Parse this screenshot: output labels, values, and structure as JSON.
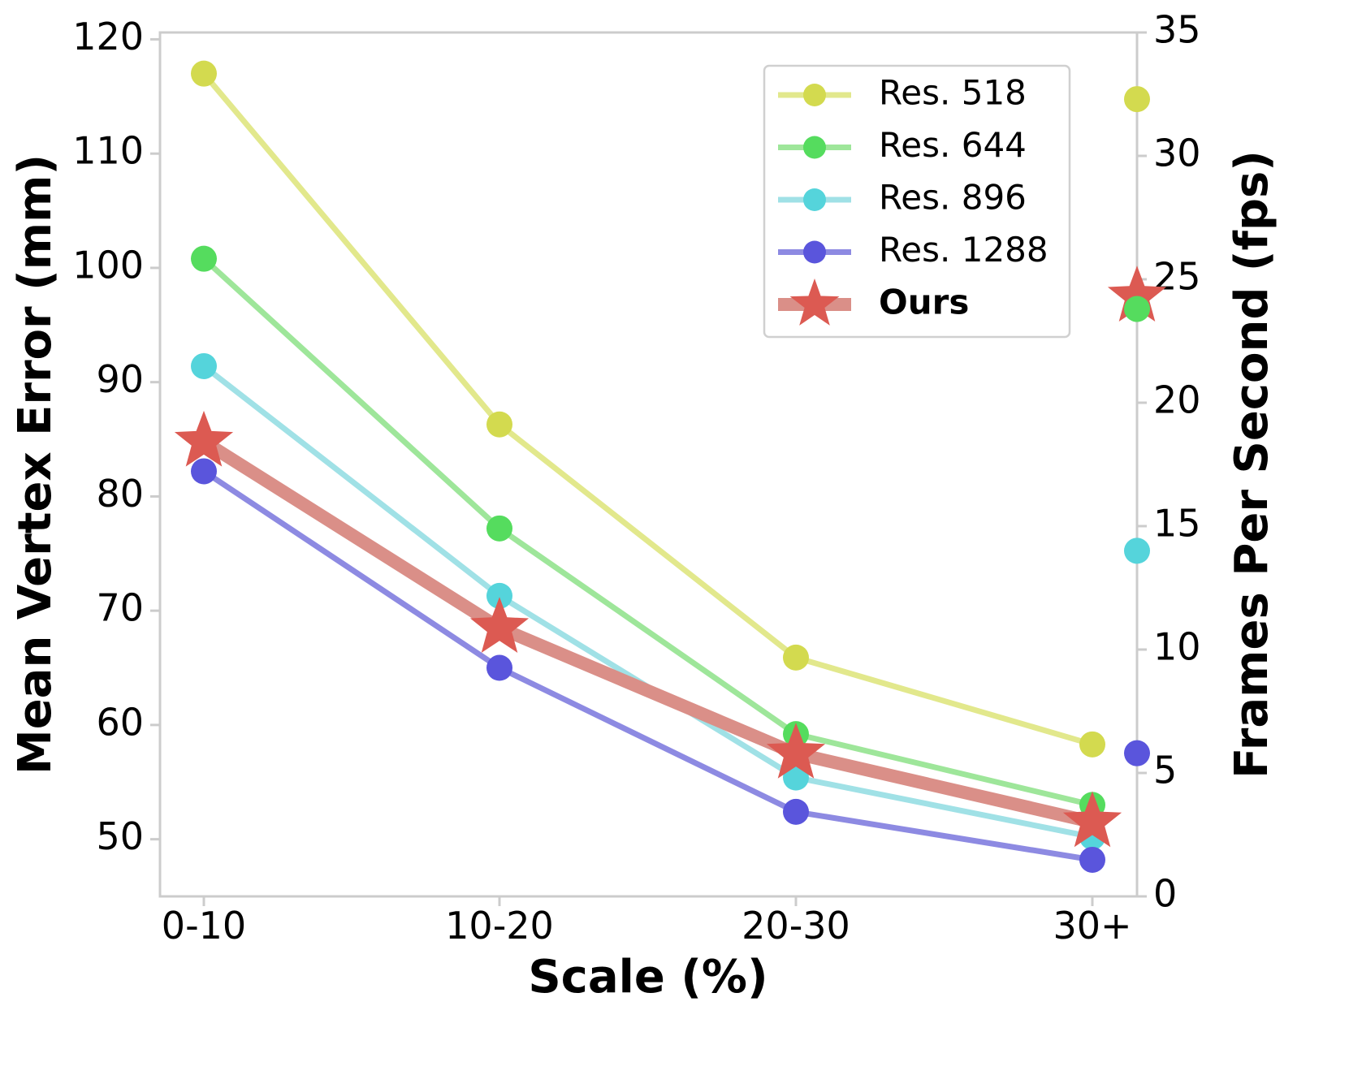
{
  "chart_data": {
    "type": "line",
    "title": "",
    "xlabel": "Scale (%)",
    "ylabel": "Mean Vertex Error (mm)",
    "y2label": "Frames Per Second (fps)",
    "categories": [
      "0-10",
      "10-20",
      "20-30",
      "30+"
    ],
    "ylim": [
      45,
      120.6
    ],
    "y2lim": [
      0,
      35
    ],
    "yticks": [
      50,
      60,
      70,
      80,
      90,
      100,
      110,
      120
    ],
    "y2ticks": [
      0,
      5,
      10,
      15,
      20,
      25,
      30,
      35
    ],
    "grid": false,
    "legend_position": "top-right",
    "series": [
      {
        "name": "Res. 518",
        "color": "#d3da4f",
        "line_color": "#e2e88c",
        "marker": "circle",
        "values": [
          117.0,
          86.3,
          65.9,
          58.3
        ],
        "fps": 32.3
      },
      {
        "name": "Res. 644",
        "color": "#55dc5e",
        "line_color": "#9ee69a",
        "marker": "circle",
        "values": [
          100.8,
          77.2,
          59.2,
          53.0
        ],
        "fps": 23.8
      },
      {
        "name": "Res. 896",
        "color": "#55d4db",
        "line_color": "#a0e1e6",
        "marker": "circle",
        "values": [
          91.4,
          71.3,
          55.4,
          50.2
        ],
        "fps": 14.0
      },
      {
        "name": "Res. 1288",
        "color": "#5a55dc",
        "line_color": "#8d8ae2",
        "marker": "circle",
        "values": [
          82.2,
          65.0,
          52.4,
          48.2
        ],
        "fps": 5.8
      },
      {
        "name": "Ours",
        "color": "#dc5a52",
        "line_color": "#da8f88",
        "marker": "star",
        "bold": true,
        "values": [
          84.8,
          68.5,
          57.5,
          51.5
        ],
        "fps": 24.3
      }
    ]
  }
}
